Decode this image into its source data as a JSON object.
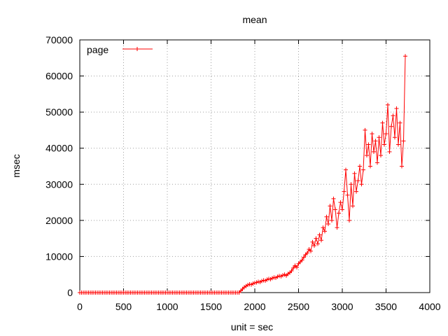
{
  "chart_data": {
    "type": "line",
    "title": "mean",
    "xlabel": "unit = sec",
    "ylabel": "msec",
    "xlim": [
      0,
      4000
    ],
    "ylim": [
      0,
      70000
    ],
    "xticks": [
      0,
      500,
      1000,
      1500,
      2000,
      2500,
      3000,
      3500,
      4000
    ],
    "yticks": [
      0,
      10000,
      20000,
      30000,
      40000,
      50000,
      60000,
      70000
    ],
    "xtick_labels": [
      "0",
      "500",
      "1000",
      "1500",
      "2000",
      "2500",
      "3000",
      "3500",
      "4000"
    ],
    "ytick_labels": [
      "0",
      "10000",
      "20000",
      "30000",
      "40000",
      "50000",
      "60000",
      "70000"
    ],
    "grid": true,
    "legend_position": "top-left",
    "series": [
      {
        "name": "page",
        "color": "#ff0000",
        "marker": "plus",
        "points": [
          [
            0,
            0
          ],
          [
            20,
            0
          ],
          [
            40,
            0
          ],
          [
            60,
            0
          ],
          [
            80,
            0
          ],
          [
            100,
            0
          ],
          [
            120,
            0
          ],
          [
            140,
            0
          ],
          [
            160,
            0
          ],
          [
            180,
            0
          ],
          [
            200,
            0
          ],
          [
            220,
            0
          ],
          [
            240,
            0
          ],
          [
            260,
            0
          ],
          [
            280,
            0
          ],
          [
            300,
            0
          ],
          [
            320,
            0
          ],
          [
            340,
            0
          ],
          [
            360,
            0
          ],
          [
            380,
            0
          ],
          [
            400,
            0
          ],
          [
            420,
            0
          ],
          [
            440,
            0
          ],
          [
            460,
            0
          ],
          [
            480,
            0
          ],
          [
            500,
            0
          ],
          [
            520,
            0
          ],
          [
            540,
            0
          ],
          [
            560,
            0
          ],
          [
            580,
            0
          ],
          [
            600,
            0
          ],
          [
            620,
            0
          ],
          [
            640,
            0
          ],
          [
            660,
            0
          ],
          [
            680,
            0
          ],
          [
            700,
            0
          ],
          [
            720,
            0
          ],
          [
            740,
            0
          ],
          [
            760,
            0
          ],
          [
            780,
            0
          ],
          [
            800,
            0
          ],
          [
            820,
            0
          ],
          [
            840,
            0
          ],
          [
            860,
            0
          ],
          [
            880,
            0
          ],
          [
            900,
            0
          ],
          [
            920,
            0
          ],
          [
            940,
            0
          ],
          [
            960,
            0
          ],
          [
            980,
            0
          ],
          [
            1000,
            0
          ],
          [
            1020,
            0
          ],
          [
            1040,
            0
          ],
          [
            1060,
            0
          ],
          [
            1080,
            0
          ],
          [
            1100,
            0
          ],
          [
            1120,
            0
          ],
          [
            1140,
            0
          ],
          [
            1160,
            0
          ],
          [
            1180,
            0
          ],
          [
            1200,
            0
          ],
          [
            1220,
            0
          ],
          [
            1240,
            0
          ],
          [
            1260,
            0
          ],
          [
            1280,
            0
          ],
          [
            1300,
            0
          ],
          [
            1320,
            0
          ],
          [
            1340,
            0
          ],
          [
            1360,
            0
          ],
          [
            1380,
            0
          ],
          [
            1400,
            0
          ],
          [
            1420,
            0
          ],
          [
            1440,
            0
          ],
          [
            1460,
            0
          ],
          [
            1480,
            0
          ],
          [
            1500,
            0
          ],
          [
            1520,
            0
          ],
          [
            1540,
            0
          ],
          [
            1560,
            0
          ],
          [
            1580,
            0
          ],
          [
            1600,
            0
          ],
          [
            1620,
            0
          ],
          [
            1640,
            0
          ],
          [
            1660,
            0
          ],
          [
            1680,
            0
          ],
          [
            1700,
            0
          ],
          [
            1720,
            0
          ],
          [
            1740,
            0
          ],
          [
            1760,
            0
          ],
          [
            1780,
            0
          ],
          [
            1800,
            0
          ],
          [
            1820,
            0
          ],
          [
            1840,
            500
          ],
          [
            1860,
            1000
          ],
          [
            1880,
            1500
          ],
          [
            1900,
            1800
          ],
          [
            1920,
            2100
          ],
          [
            1940,
            2300
          ],
          [
            1960,
            2200
          ],
          [
            1980,
            2500
          ],
          [
            2000,
            2700
          ],
          [
            2020,
            2800
          ],
          [
            2040,
            3000
          ],
          [
            2060,
            2900
          ],
          [
            2080,
            3200
          ],
          [
            2100,
            3400
          ],
          [
            2120,
            3300
          ],
          [
            2140,
            3600
          ],
          [
            2160,
            3800
          ],
          [
            2180,
            3700
          ],
          [
            2200,
            4000
          ],
          [
            2220,
            4200
          ],
          [
            2240,
            4100
          ],
          [
            2260,
            4400
          ],
          [
            2280,
            4600
          ],
          [
            2300,
            4500
          ],
          [
            2320,
            4800
          ],
          [
            2340,
            5000
          ],
          [
            2360,
            4700
          ],
          [
            2380,
            5200
          ],
          [
            2400,
            5500
          ],
          [
            2420,
            6000
          ],
          [
            2440,
            6800
          ],
          [
            2460,
            7500
          ],
          [
            2480,
            7000
          ],
          [
            2500,
            8000
          ],
          [
            2520,
            8500
          ],
          [
            2540,
            9000
          ],
          [
            2560,
            9800
          ],
          [
            2580,
            10500
          ],
          [
            2600,
            11000
          ],
          [
            2620,
            12000
          ],
          [
            2640,
            11500
          ],
          [
            2660,
            14000
          ],
          [
            2680,
            13000
          ],
          [
            2700,
            15000
          ],
          [
            2720,
            13500
          ],
          [
            2740,
            16000
          ],
          [
            2760,
            14500
          ],
          [
            2780,
            18000
          ],
          [
            2800,
            17000
          ],
          [
            2820,
            21000
          ],
          [
            2840,
            19000
          ],
          [
            2860,
            24000
          ],
          [
            2880,
            20000
          ],
          [
            2900,
            26000
          ],
          [
            2920,
            23000
          ],
          [
            2940,
            18000
          ],
          [
            2960,
            22000
          ],
          [
            2980,
            25000
          ],
          [
            3000,
            23000
          ],
          [
            3020,
            28000
          ],
          [
            3040,
            34000
          ],
          [
            3060,
            27000
          ],
          [
            3080,
            20000
          ],
          [
            3100,
            30000
          ],
          [
            3120,
            24000
          ],
          [
            3140,
            33000
          ],
          [
            3160,
            28000
          ],
          [
            3180,
            31000
          ],
          [
            3200,
            35000
          ],
          [
            3220,
            30000
          ],
          [
            3240,
            34000
          ],
          [
            3260,
            45000
          ],
          [
            3280,
            38000
          ],
          [
            3300,
            41000
          ],
          [
            3320,
            35000
          ],
          [
            3340,
            44000
          ],
          [
            3360,
            39000
          ],
          [
            3380,
            42000
          ],
          [
            3400,
            36000
          ],
          [
            3420,
            43000
          ],
          [
            3440,
            38000
          ],
          [
            3460,
            47000
          ],
          [
            3480,
            41000
          ],
          [
            3500,
            44000
          ],
          [
            3520,
            52000
          ],
          [
            3540,
            39000
          ],
          [
            3560,
            46000
          ],
          [
            3580,
            49000
          ],
          [
            3600,
            43000
          ],
          [
            3620,
            51000
          ],
          [
            3640,
            41000
          ],
          [
            3660,
            47000
          ],
          [
            3680,
            35000
          ],
          [
            3700,
            42000
          ],
          [
            3720,
            65500
          ]
        ]
      }
    ]
  }
}
